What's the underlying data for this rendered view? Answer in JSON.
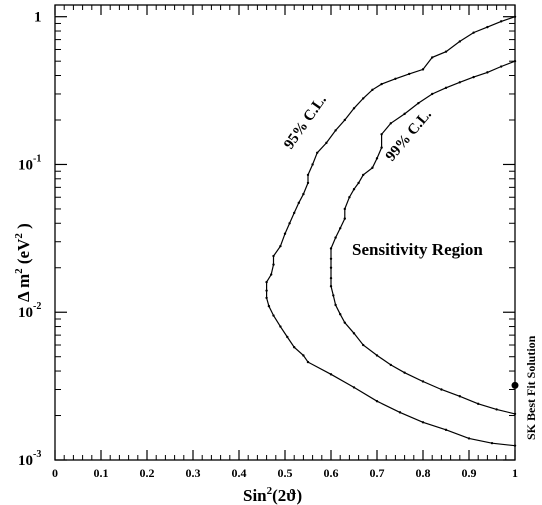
{
  "chart_data": {
    "type": "line",
    "x_scale": "linear",
    "y_scale": "log",
    "xlim": [
      0,
      1
    ],
    "ylim": [
      0.001,
      1.2
    ],
    "x_ticks": [
      {
        "v": 0,
        "label": "0"
      },
      {
        "v": 0.1,
        "label": "0.1"
      },
      {
        "v": 0.2,
        "label": "0.2"
      },
      {
        "v": 0.3,
        "label": "0.3"
      },
      {
        "v": 0.4,
        "label": "0.4"
      },
      {
        "v": 0.5,
        "label": "0.5"
      },
      {
        "v": 0.6,
        "label": "0.6"
      },
      {
        "v": 0.7,
        "label": "0.7"
      },
      {
        "v": 0.8,
        "label": "0.8"
      },
      {
        "v": 0.9,
        "label": "0.9"
      },
      {
        "v": 1,
        "label": "1"
      }
    ],
    "y_ticks": [
      {
        "v": 1,
        "base": "1",
        "exp": ""
      },
      {
        "v": 0.1,
        "base": "10",
        "exp": "-1"
      },
      {
        "v": 0.01,
        "base": "10",
        "exp": "-2"
      },
      {
        "v": 0.001,
        "base": "10",
        "exp": "-3"
      }
    ],
    "xlabel": {
      "main": "Sin",
      "sup": "2",
      "arg": "(2ϑ)"
    },
    "ylabel": {
      "main": "Δ m",
      "sup": "2",
      "unit": " (eV",
      "unit_sup": "2",
      "close": " )"
    },
    "series": [
      {
        "name": "95% C.L.",
        "points": [
          [
            1.0,
            1.0
          ],
          [
            0.97,
            0.93
          ],
          [
            0.94,
            0.85
          ],
          [
            0.91,
            0.78
          ],
          [
            0.88,
            0.68
          ],
          [
            0.85,
            0.58
          ],
          [
            0.82,
            0.53
          ],
          [
            0.8,
            0.44
          ],
          [
            0.77,
            0.41
          ],
          [
            0.74,
            0.38
          ],
          [
            0.71,
            0.35
          ],
          [
            0.69,
            0.32
          ],
          [
            0.67,
            0.28
          ],
          [
            0.65,
            0.24
          ],
          [
            0.63,
            0.2
          ],
          [
            0.61,
            0.17
          ],
          [
            0.59,
            0.14
          ],
          [
            0.57,
            0.12
          ],
          [
            0.56,
            0.1
          ],
          [
            0.55,
            0.085
          ],
          [
            0.55,
            0.075
          ],
          [
            0.54,
            0.063
          ],
          [
            0.53,
            0.055
          ],
          [
            0.52,
            0.047
          ],
          [
            0.51,
            0.04
          ],
          [
            0.5,
            0.034
          ],
          [
            0.49,
            0.028
          ],
          [
            0.475,
            0.024
          ],
          [
            0.475,
            0.021
          ],
          [
            0.47,
            0.018
          ],
          [
            0.46,
            0.016
          ],
          [
            0.46,
            0.014
          ],
          [
            0.46,
            0.0125
          ],
          [
            0.465,
            0.011
          ],
          [
            0.475,
            0.0095
          ],
          [
            0.49,
            0.008
          ],
          [
            0.505,
            0.0068
          ],
          [
            0.52,
            0.0058
          ],
          [
            0.54,
            0.0051
          ],
          [
            0.55,
            0.0046
          ],
          [
            0.6,
            0.0038
          ],
          [
            0.65,
            0.0031
          ],
          [
            0.7,
            0.0025
          ],
          [
            0.75,
            0.0021
          ],
          [
            0.8,
            0.0018
          ],
          [
            0.85,
            0.0016
          ],
          [
            0.9,
            0.0014
          ],
          [
            0.95,
            0.0013
          ],
          [
            1.0,
            0.00125
          ]
        ]
      },
      {
        "name": "99% C.L.",
        "points": [
          [
            1.0,
            0.5
          ],
          [
            0.97,
            0.46
          ],
          [
            0.94,
            0.42
          ],
          [
            0.91,
            0.39
          ],
          [
            0.88,
            0.36
          ],
          [
            0.85,
            0.33
          ],
          [
            0.82,
            0.3
          ],
          [
            0.79,
            0.26
          ],
          [
            0.76,
            0.22
          ],
          [
            0.73,
            0.19
          ],
          [
            0.71,
            0.16
          ],
          [
            0.71,
            0.13
          ],
          [
            0.7,
            0.11
          ],
          [
            0.69,
            0.095
          ],
          [
            0.67,
            0.085
          ],
          [
            0.66,
            0.075
          ],
          [
            0.65,
            0.068
          ],
          [
            0.64,
            0.06
          ],
          [
            0.63,
            0.05
          ],
          [
            0.63,
            0.043
          ],
          [
            0.62,
            0.037
          ],
          [
            0.61,
            0.032
          ],
          [
            0.6,
            0.027
          ],
          [
            0.6,
            0.023
          ],
          [
            0.6,
            0.02
          ],
          [
            0.6,
            0.017
          ],
          [
            0.6,
            0.015
          ],
          [
            0.605,
            0.013
          ],
          [
            0.61,
            0.0112
          ],
          [
            0.62,
            0.0097
          ],
          [
            0.63,
            0.0085
          ],
          [
            0.65,
            0.0072
          ],
          [
            0.67,
            0.006
          ],
          [
            0.7,
            0.0051
          ],
          [
            0.73,
            0.0044
          ],
          [
            0.76,
            0.0039
          ],
          [
            0.8,
            0.0034
          ],
          [
            0.84,
            0.003
          ],
          [
            0.88,
            0.0027
          ],
          [
            0.92,
            0.0024
          ],
          [
            0.96,
            0.0022
          ],
          [
            1.0,
            0.00205
          ]
        ]
      }
    ],
    "annotations": {
      "cl95": "95% C.L.",
      "cl99": "99% C.L.",
      "region": "Sensitivity Region",
      "sk": "SK Best Fit Solution"
    },
    "best_fit_point": [
      1.0,
      0.0032
    ],
    "grid": false,
    "legend": "none"
  }
}
